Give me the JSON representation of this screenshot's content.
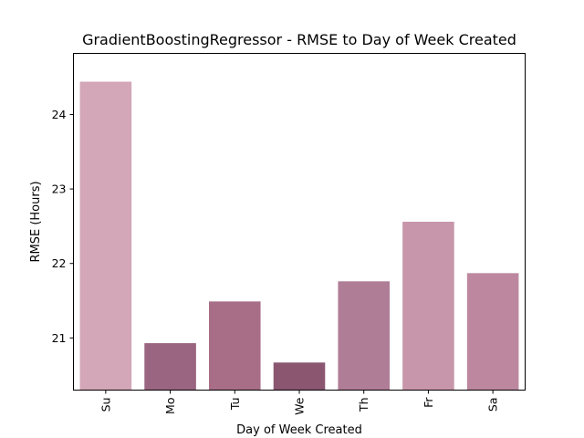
{
  "chart_data": {
    "type": "bar",
    "title": "GradientBoostingRegressor - RMSE to Day of Week Created",
    "xlabel": "Day of Week Created",
    "ylabel": "RMSE (Hours)",
    "categories": [
      "Su",
      "Mo",
      "Tu",
      "We",
      "Th",
      "Fr",
      "Sa"
    ],
    "values": [
      24.44,
      20.93,
      21.49,
      20.67,
      21.76,
      22.56,
      21.87
    ],
    "ylim": [
      20.3,
      24.82
    ],
    "yticks": [
      21,
      22,
      23,
      24
    ],
    "grid": false,
    "legend": "none",
    "colors": [
      "#d3a6b8",
      "#9a6580",
      "#a86e88",
      "#8a5670",
      "#b07d96",
      "#c896aa",
      "#bd889f"
    ]
  }
}
